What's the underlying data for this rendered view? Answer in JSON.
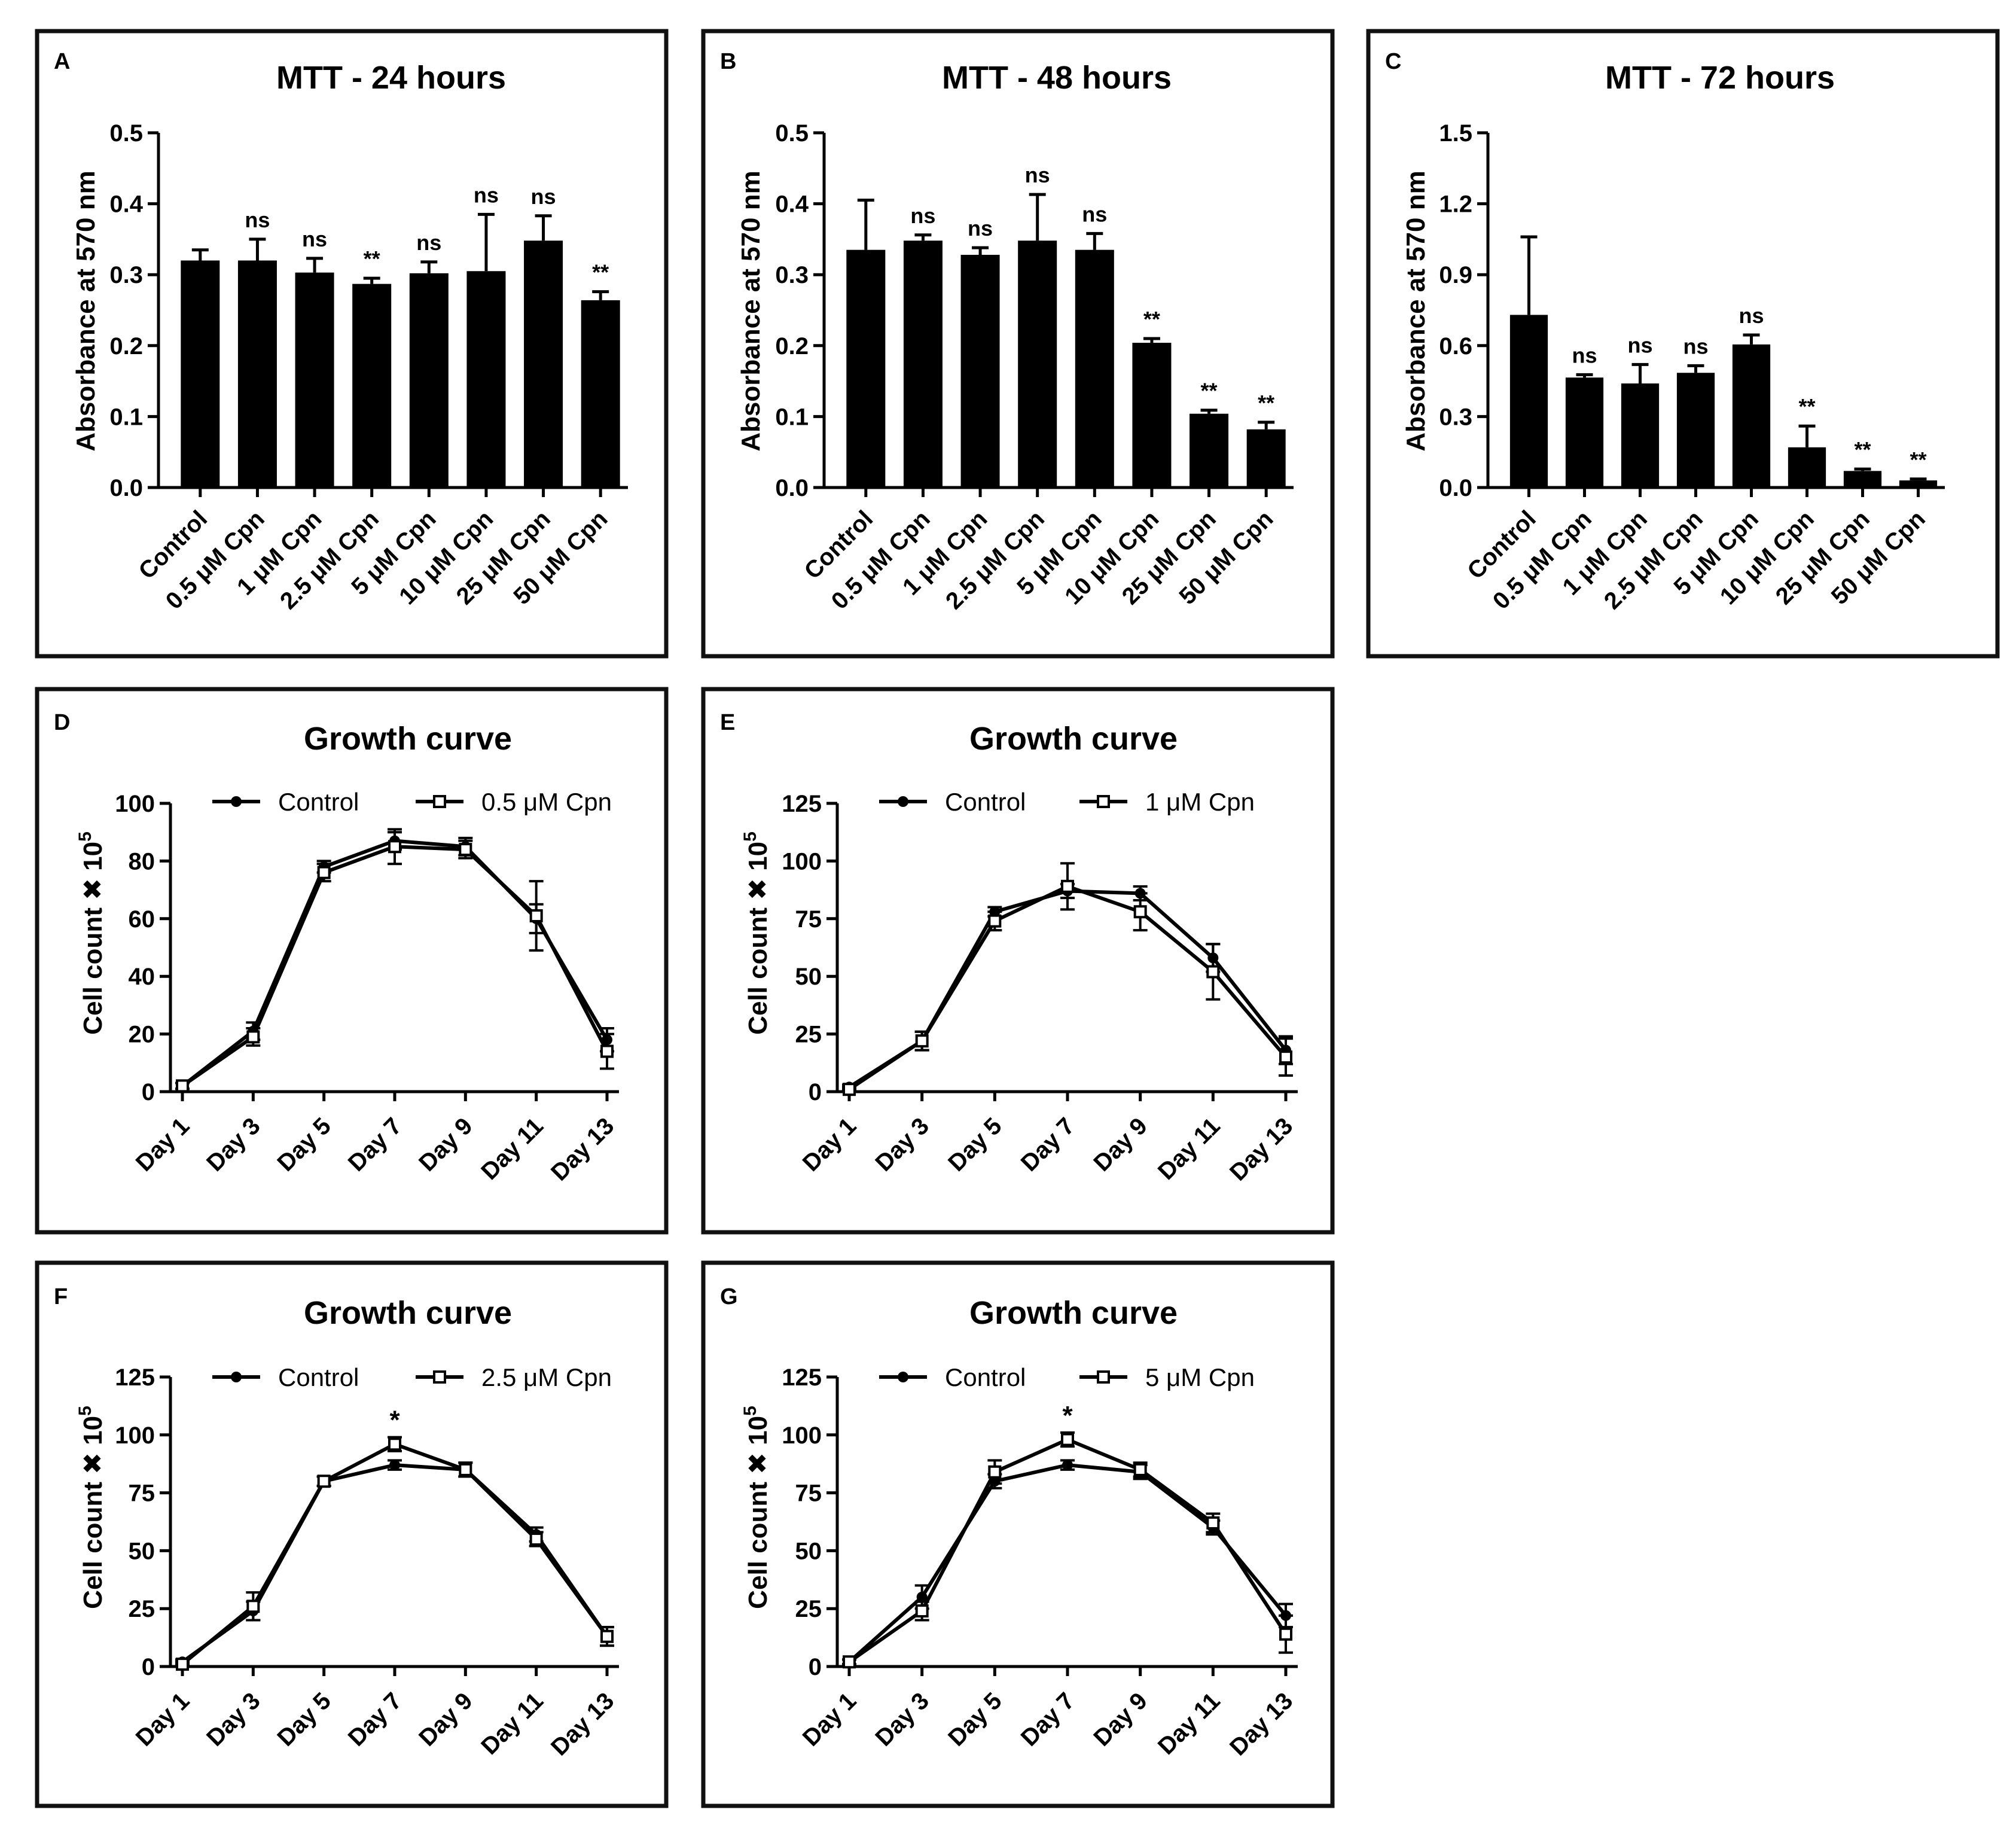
{
  "chart_data": [
    {
      "id": "A",
      "type": "bar",
      "panel_label": "A",
      "title": "MTT - 24 hours",
      "ylabel": "Absorbance at 570 nm",
      "xlabel": "",
      "ylim": [
        0,
        0.5
      ],
      "yticks": [
        "0.0",
        "0.1",
        "0.2",
        "0.3",
        "0.4",
        "0.5"
      ],
      "categories": [
        "Control",
        "0.5 μM Cpn",
        "1 μM Cpn",
        "2.5 μM Cpn",
        "5 μM Cpn",
        "10 μM Cpn",
        "25 μM Cpn",
        "50 μM Cpn"
      ],
      "values": [
        0.32,
        0.32,
        0.303,
        0.287,
        0.302,
        0.305,
        0.348,
        0.264
      ],
      "errors": [
        0.015,
        0.03,
        0.02,
        0.008,
        0.016,
        0.08,
        0.035,
        0.012
      ],
      "significance": [
        "",
        "ns",
        "ns",
        "**",
        "ns",
        "ns",
        "ns",
        "**"
      ]
    },
    {
      "id": "B",
      "type": "bar",
      "panel_label": "B",
      "title": "MTT - 48 hours",
      "ylabel": "Absorbance at 570 nm",
      "xlabel": "",
      "ylim": [
        0,
        0.5
      ],
      "yticks": [
        "0.0",
        "0.1",
        "0.2",
        "0.3",
        "0.4",
        "0.5"
      ],
      "categories": [
        "Control",
        "0.5 μM Cpn",
        "1 μM Cpn",
        "2.5 μM Cpn",
        "5 μM Cpn",
        "10 μM Cpn",
        "25 μM Cpn",
        "50 μM Cpn"
      ],
      "values": [
        0.335,
        0.348,
        0.328,
        0.348,
        0.335,
        0.204,
        0.104,
        0.082
      ],
      "errors": [
        0.07,
        0.008,
        0.01,
        0.065,
        0.023,
        0.006,
        0.005,
        0.01
      ],
      "significance": [
        "",
        "ns",
        "ns",
        "ns",
        "ns",
        "**",
        "**",
        "**"
      ]
    },
    {
      "id": "C",
      "type": "bar",
      "panel_label": "C",
      "title": "MTT - 72 hours",
      "ylabel": "Absorbance at 570 nm",
      "xlabel": "",
      "ylim": [
        0,
        1.5
      ],
      "yticks": [
        "0.0",
        "0.3",
        "0.6",
        "0.9",
        "1.2",
        "1.5"
      ],
      "categories": [
        "Control",
        "0.5 μM Cpn",
        "1 μM Cpn",
        "2.5 μM Cpn",
        "5 μM Cpn",
        "10 μM Cpn",
        "25 μM Cpn",
        "50 μM Cpn"
      ],
      "values": [
        0.73,
        0.465,
        0.44,
        0.485,
        0.605,
        0.17,
        0.07,
        0.03
      ],
      "errors": [
        0.33,
        0.012,
        0.08,
        0.03,
        0.04,
        0.09,
        0.008,
        0.006
      ],
      "significance": [
        "",
        "ns",
        "ns",
        "ns",
        "ns",
        "**",
        "**",
        "**"
      ]
    },
    {
      "id": "D",
      "type": "line",
      "panel_label": "D",
      "title": "Growth curve",
      "ylabel": "Cell count ✖ 10",
      "ylabel_sup": "5",
      "xlabel": "",
      "ylim": [
        0,
        100
      ],
      "yticks": [
        "0",
        "20",
        "40",
        "60",
        "80",
        "100"
      ],
      "categories": [
        "Day 1",
        "Day 3",
        "Day 5",
        "Day 7",
        "Day 9",
        "Day 11",
        "Day 13"
      ],
      "series": [
        {
          "name": "Control",
          "marker": "circle",
          "values": [
            2,
            21,
            78,
            87,
            85,
            60,
            18
          ],
          "errors": [
            1,
            3,
            2,
            3,
            3,
            5,
            4
          ]
        },
        {
          "name": "0.5 μM Cpn",
          "marker": "square",
          "values": [
            2,
            19,
            76,
            85,
            84,
            61,
            14
          ],
          "errors": [
            1,
            3,
            3,
            6,
            3,
            12,
            6
          ]
        }
      ],
      "annotations": []
    },
    {
      "id": "E",
      "type": "line",
      "panel_label": "E",
      "title": "Growth curve",
      "ylabel": "Cell count ✖ 10",
      "ylabel_sup": "5",
      "xlabel": "",
      "ylim": [
        0,
        125
      ],
      "yticks": [
        "0",
        "25",
        "50",
        "75",
        "100",
        "125"
      ],
      "categories": [
        "Day 1",
        "Day 3",
        "Day 5",
        "Day 7",
        "Day 9",
        "Day 11",
        "Day 13"
      ],
      "series": [
        {
          "name": "Control",
          "marker": "circle",
          "values": [
            2,
            22,
            78,
            87,
            86,
            58,
            18
          ],
          "errors": [
            1,
            4,
            2,
            3,
            3,
            6,
            6
          ]
        },
        {
          "name": "1 μM Cpn",
          "marker": "square",
          "values": [
            1,
            22,
            74,
            89,
            78,
            52,
            15
          ],
          "errors": [
            1,
            4,
            4,
            10,
            8,
            12,
            8
          ]
        }
      ],
      "annotations": []
    },
    {
      "id": "F",
      "type": "line",
      "panel_label": "F",
      "title": "Growth curve",
      "ylabel": "Cell count ✖ 10",
      "ylabel_sup": "5",
      "xlabel": "",
      "ylim": [
        0,
        125
      ],
      "yticks": [
        "0",
        "25",
        "50",
        "75",
        "100",
        "125"
      ],
      "categories": [
        "Day 1",
        "Day 3",
        "Day 5",
        "Day 7",
        "Day 9",
        "Day 11",
        "Day 13"
      ],
      "series": [
        {
          "name": "Control",
          "marker": "circle",
          "values": [
            2,
            24,
            80,
            87,
            85,
            57,
            13
          ],
          "errors": [
            1,
            4,
            2,
            2,
            3,
            3,
            4
          ]
        },
        {
          "name": "2.5 μM Cpn",
          "marker": "square",
          "values": [
            1,
            26,
            80,
            96,
            85,
            55,
            13
          ],
          "errors": [
            1,
            6,
            2,
            3,
            3,
            3,
            4
          ]
        }
      ],
      "annotations": [
        {
          "category": "Day 7",
          "text": "*"
        }
      ]
    },
    {
      "id": "G",
      "type": "line",
      "panel_label": "G",
      "title": "Growth curve",
      "ylabel": "Cell count ✖ 10",
      "ylabel_sup": "5",
      "xlabel": "",
      "ylim": [
        0,
        125
      ],
      "yticks": [
        "0",
        "25",
        "50",
        "75",
        "100",
        "125"
      ],
      "categories": [
        "Day 1",
        "Day 3",
        "Day 5",
        "Day 7",
        "Day 9",
        "Day 11",
        "Day 13"
      ],
      "series": [
        {
          "name": "Control",
          "marker": "circle",
          "values": [
            2,
            30,
            80,
            87,
            84,
            60,
            22
          ],
          "errors": [
            1,
            5,
            3,
            2,
            3,
            3,
            5
          ]
        },
        {
          "name": "5 μM Cpn",
          "marker": "square",
          "values": [
            2,
            24,
            84,
            98,
            85,
            62,
            14
          ],
          "errors": [
            1,
            4,
            5,
            3,
            3,
            4,
            8
          ]
        }
      ],
      "annotations": [
        {
          "category": "Day 7",
          "text": "*"
        }
      ]
    }
  ]
}
